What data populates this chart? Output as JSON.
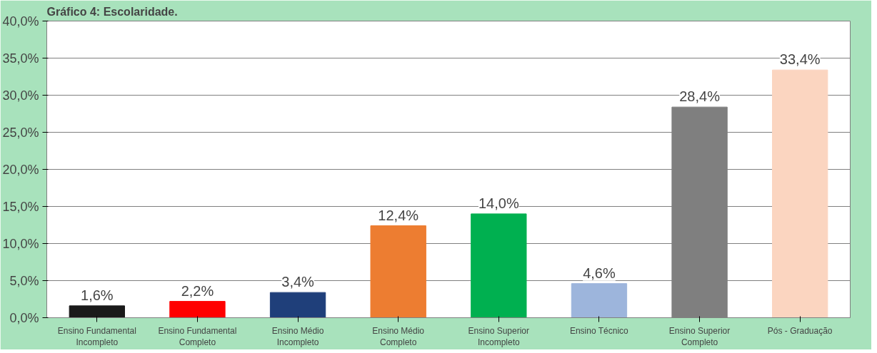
{
  "chart_data": {
    "type": "bar",
    "title": "Gráfico 4: Escolaridade.",
    "categories": [
      "Ensino Fundamental Incompleto",
      "Ensino Fundamental Completo",
      "Ensino Médio Incompleto",
      "Ensino Médio Completo",
      "Ensino Superior Incompleto",
      "Ensino Técnico",
      "Ensino Superior Completo",
      "Pós - Graduação"
    ],
    "values": [
      1.6,
      2.2,
      3.4,
      12.4,
      14.0,
      4.6,
      28.4,
      33.4
    ],
    "colors": [
      "#1a1a1a",
      "#ff0000",
      "#1f3f7a",
      "#ed7d31",
      "#00b050",
      "#9db5dc",
      "#7f7f7f",
      "#fbd5c0"
    ],
    "value_labels": [
      "1,6%",
      "2,2%",
      "3,4%",
      "12,4%",
      "14,0%",
      "4,6%",
      "28,4%",
      "33,4%"
    ],
    "ylim": [
      0,
      40
    ],
    "yticks": [
      {
        "value": 0,
        "label": "0,0%"
      },
      {
        "value": 5,
        "label": "5,0%"
      },
      {
        "value": 10,
        "label": "10,0%"
      },
      {
        "value": 15,
        "label": "15,0%"
      },
      {
        "value": 20,
        "label": "20,0%"
      },
      {
        "value": 25,
        "label": "25,0%"
      },
      {
        "value": 30,
        "label": "30,0%"
      },
      {
        "value": 35,
        "label": "35,0%"
      },
      {
        "value": 40,
        "label": "40,0%"
      }
    ],
    "grid": "y"
  }
}
